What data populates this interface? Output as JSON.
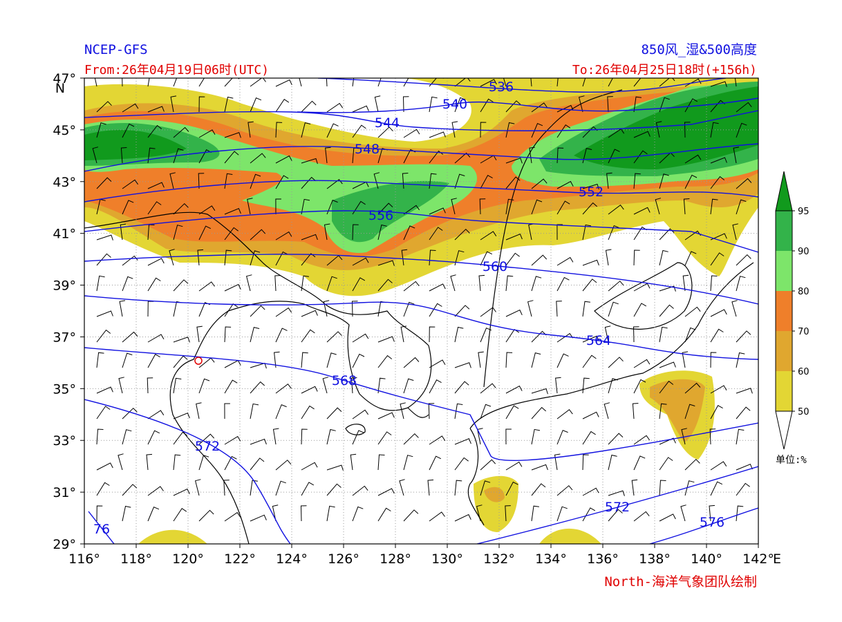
{
  "header": {
    "left_title": "NCEP-GFS",
    "left_subtitle": "From:26年04月19日06时(UTC)",
    "right_title": "850风_湿&500高度",
    "right_subtitle": "To:26年04月25日18时(+156h)"
  },
  "axes": {
    "lat_ticks": [
      "47°",
      "45°",
      "43°",
      "41°",
      "39°",
      "37°",
      "35°",
      "33°",
      "31°",
      "29°"
    ],
    "lat_unit": "N",
    "lon_ticks": [
      "116°",
      "118°",
      "120°",
      "122°",
      "124°",
      "126°",
      "128°",
      "130°",
      "132°",
      "134°",
      "136°",
      "138°",
      "140°",
      "142°"
    ],
    "lon_unit": "E"
  },
  "contour_labels": [
    "536",
    "540",
    "544",
    "548",
    "552",
    "556",
    "560",
    "564",
    "568",
    "572",
    "572",
    "576",
    "76"
  ],
  "colorbar": {
    "ticks": [
      "50",
      "60",
      "70",
      "80",
      "90",
      "95"
    ],
    "unit": "单位:%"
  },
  "credit": "North-海洋气象团队绘制"
}
